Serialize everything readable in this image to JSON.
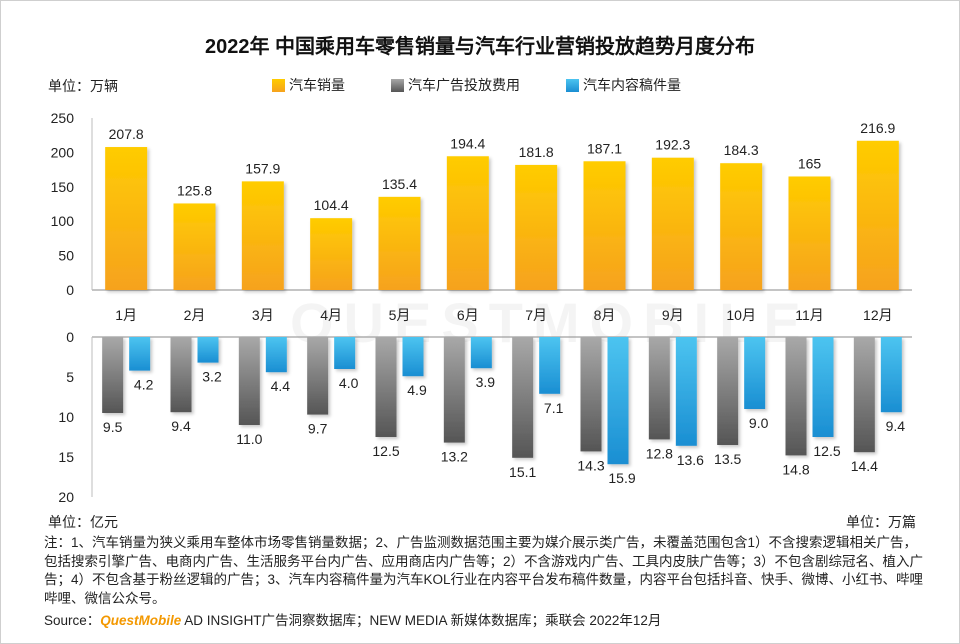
{
  "title": "2022年 中国乘用车零售销量与汽车行业营销投放趋势月度分布",
  "units": {
    "sales": "单位：万辆",
    "ad": "单位：亿元",
    "content": "单位：万篇"
  },
  "legend": [
    "汽车销量",
    "汽车广告投放费用",
    "汽车内容稿件量"
  ],
  "colors": {
    "sales_top": "#ffcc00",
    "sales_bottom": "#f6a21e",
    "ad_top": "#a8a8a8",
    "ad_bottom": "#555555",
    "content_top": "#4cc4f0",
    "content_bottom": "#1a8ed2",
    "logo": "#f39800"
  },
  "note": "注：1、汽车销量为狭义乘用车整体市场零售销量数据；2、广告监测数据范围主要为媒介展示类广告，未覆盖范围包含1）不含搜索逻辑相关广告，包括搜索引擎广告、电商内广告、生活服务平台内广告、应用商店内广告等；2）不含游戏内广告、工具内皮肤广告等；3）不包含剧综冠名、植入广告；4）不包含基于粉丝逻辑的广告；3、汽车内容稿件量为汽车KOL行业在内容平台发布稿件数量，内容平台包括抖音、快手、微博、小红书、哔哩哔哩、微信公众号。",
  "source": {
    "prefix": "Source：",
    "logo": "QuestMobile",
    "text": " AD INSIGHT广告洞察数据库；NEW MEDIA 新媒体数据库；乘联会 2022年12月"
  },
  "watermark": "QUESTMOBILE",
  "chart_data": [
    {
      "type": "bar",
      "categories": [
        "1月",
        "2月",
        "3月",
        "4月",
        "5月",
        "6月",
        "7月",
        "8月",
        "9月",
        "10月",
        "11月",
        "12月"
      ],
      "series": [
        {
          "name": "汽车销量",
          "values": [
            207.8,
            125.8,
            157.9,
            104.4,
            135.4,
            194.4,
            181.8,
            187.1,
            192.3,
            184.3,
            165,
            216.9
          ],
          "labels": [
            "207.8",
            "125.8",
            "157.9",
            "104.4",
            "135.4",
            "194.4",
            "181.8",
            "187.1",
            "192.3",
            "184.3",
            "165",
            "216.9"
          ]
        }
      ],
      "ylabel": "单位：万辆",
      "ylim": [
        0,
        250
      ],
      "yticks": [
        0,
        50,
        100,
        150,
        200,
        250
      ]
    },
    {
      "type": "bar",
      "orientation": "downward",
      "categories": [
        "1月",
        "2月",
        "3月",
        "4月",
        "5月",
        "6月",
        "7月",
        "8月",
        "9月",
        "10月",
        "11月",
        "12月"
      ],
      "series": [
        {
          "name": "汽车广告投放费用",
          "values": [
            9.5,
            9.4,
            11.0,
            9.7,
            12.5,
            13.2,
            15.1,
            14.3,
            12.8,
            13.5,
            14.8,
            14.4
          ],
          "labels": [
            "9.5",
            "9.4",
            "11.0",
            "9.7",
            "12.5",
            "13.2",
            "15.1",
            "14.3",
            "12.8",
            "13.5",
            "14.8",
            "14.4"
          ]
        },
        {
          "name": "汽车内容稿件量",
          "values": [
            4.2,
            3.2,
            4.4,
            4.0,
            4.9,
            3.9,
            7.1,
            15.9,
            13.6,
            9.0,
            12.5,
            9.4
          ],
          "labels": [
            "4.2",
            "3.2",
            "4.4",
            "4.0",
            "4.9",
            "3.9",
            "7.1",
            "15.9",
            "13.6",
            "9.0",
            "12.5",
            "9.4"
          ]
        }
      ],
      "ylim": [
        0,
        20
      ],
      "yticks": [
        0,
        5,
        10,
        15,
        20
      ]
    }
  ]
}
